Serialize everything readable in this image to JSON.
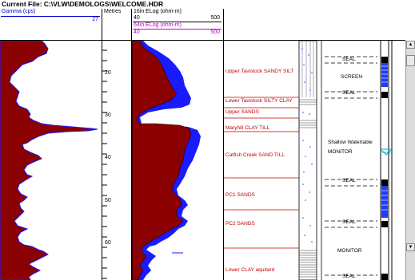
{
  "window": {
    "title": "Current File: C:\\VLW\\DEMOLOGS\\WELCOME.HDR"
  },
  "headers": {
    "gamma": {
      "label": "Gamma (cps)",
      "max": "27"
    },
    "depth": {
      "label": "Metres"
    },
    "elog": {
      "label16": "16in ELog (ohm-m)",
      "label64": "64in ELog (ohm-m)",
      "min16": "40",
      "max16": "500",
      "min64": "40",
      "max64": "500"
    }
  },
  "depth_ticks": [
    "20",
    "30",
    "40",
    "50",
    "60"
  ],
  "units": [
    "Upper Tavistock SANDY SILT",
    "Lower Tavistock SILTY CLAY",
    "Upper SANDS",
    "Maryhill CLAY TILL",
    "Catfish Creek SAND TILL",
    "PC1 SANDS",
    "PC2 SANDS",
    "Lower CLAY aquitard"
  ],
  "well": {
    "seal1": "SEAL",
    "screen": "SCREEN",
    "seal2": "SEAL",
    "shallow": "Shallow Watertable",
    "monitor1": "MONITOR",
    "seal3": "SEAL",
    "seal4": "SEAL",
    "monitor2": "MONITOR",
    "seal5": "SEAL"
  },
  "colors": {
    "gamma_fill": "#8b0000",
    "elog16_fill": "#8b0000",
    "elog64_fill": "#1a1aff",
    "unit_text": "#c00000",
    "screen_blue": "#1e3cff",
    "cyan": "#00b4c8"
  }
}
